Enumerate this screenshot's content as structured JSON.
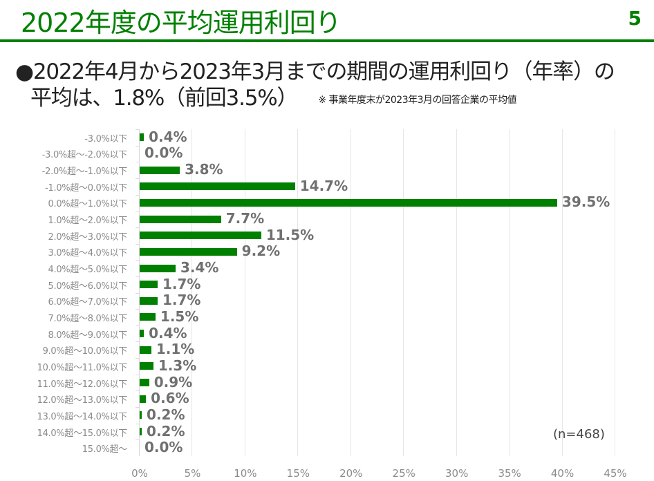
{
  "header": {
    "title": "2022年度の平均運用利回り",
    "page_number": "5"
  },
  "summary": {
    "line1": "●2022年4月から2023年3月までの期間の運用利回り（年率）の",
    "line2": "平均は、1.8%（前回3.5%）",
    "note": "※ 事業年度末が2023年3月の回答企業の平均値"
  },
  "colors": {
    "accent": "#008000",
    "bar": "#008000",
    "value_label": "#707070",
    "axis_label": "#8a8a8a"
  },
  "chart_data": {
    "type": "bar",
    "orientation": "horizontal",
    "title": "",
    "xlabel": "",
    "ylabel": "",
    "xlim": [
      0,
      45
    ],
    "grid": true,
    "sample_size_label": "(n=468)",
    "x_ticks": [
      "0%",
      "5%",
      "10%",
      "15%",
      "20%",
      "25%",
      "30%",
      "35%",
      "40%",
      "45%"
    ],
    "categories": [
      "-3.0%以下",
      "-3.0%超～-2.0%以下",
      "-2.0%超～-1.0%以下",
      "-1.0%超～0.0%以下",
      "0.0%超～1.0%以下",
      "1.0%超～2.0%以下",
      "2.0%超～3.0%以下",
      "3.0%超～4.0%以下",
      "4.0%超～5.0%以下",
      "5.0%超～6.0%以下",
      "6.0%超～7.0%以下",
      "7.0%超～8.0%以下",
      "8.0%超～9.0%以下",
      "9.0%超～10.0%以下",
      "10.0%超～11.0%以下",
      "11.0%超～12.0%以下",
      "12.0%超～13.0%以下",
      "13.0%超～14.0%以下",
      "14.0%超～15.0%以下",
      "15.0%超～"
    ],
    "values": [
      0.4,
      0.0,
      3.8,
      14.7,
      39.5,
      7.7,
      11.5,
      9.2,
      3.4,
      1.7,
      1.7,
      1.5,
      0.4,
      1.1,
      1.3,
      0.9,
      0.6,
      0.2,
      0.2,
      0.0
    ],
    "value_labels": [
      "0.4%",
      "0.0%",
      "3.8%",
      "14.7%",
      "39.5%",
      "7.7%",
      "11.5%",
      "9.2%",
      "3.4%",
      "1.7%",
      "1.7%",
      "1.5%",
      "0.4%",
      "1.1%",
      "1.3%",
      "0.9%",
      "0.6%",
      "0.2%",
      "0.2%",
      "0.0%"
    ]
  }
}
